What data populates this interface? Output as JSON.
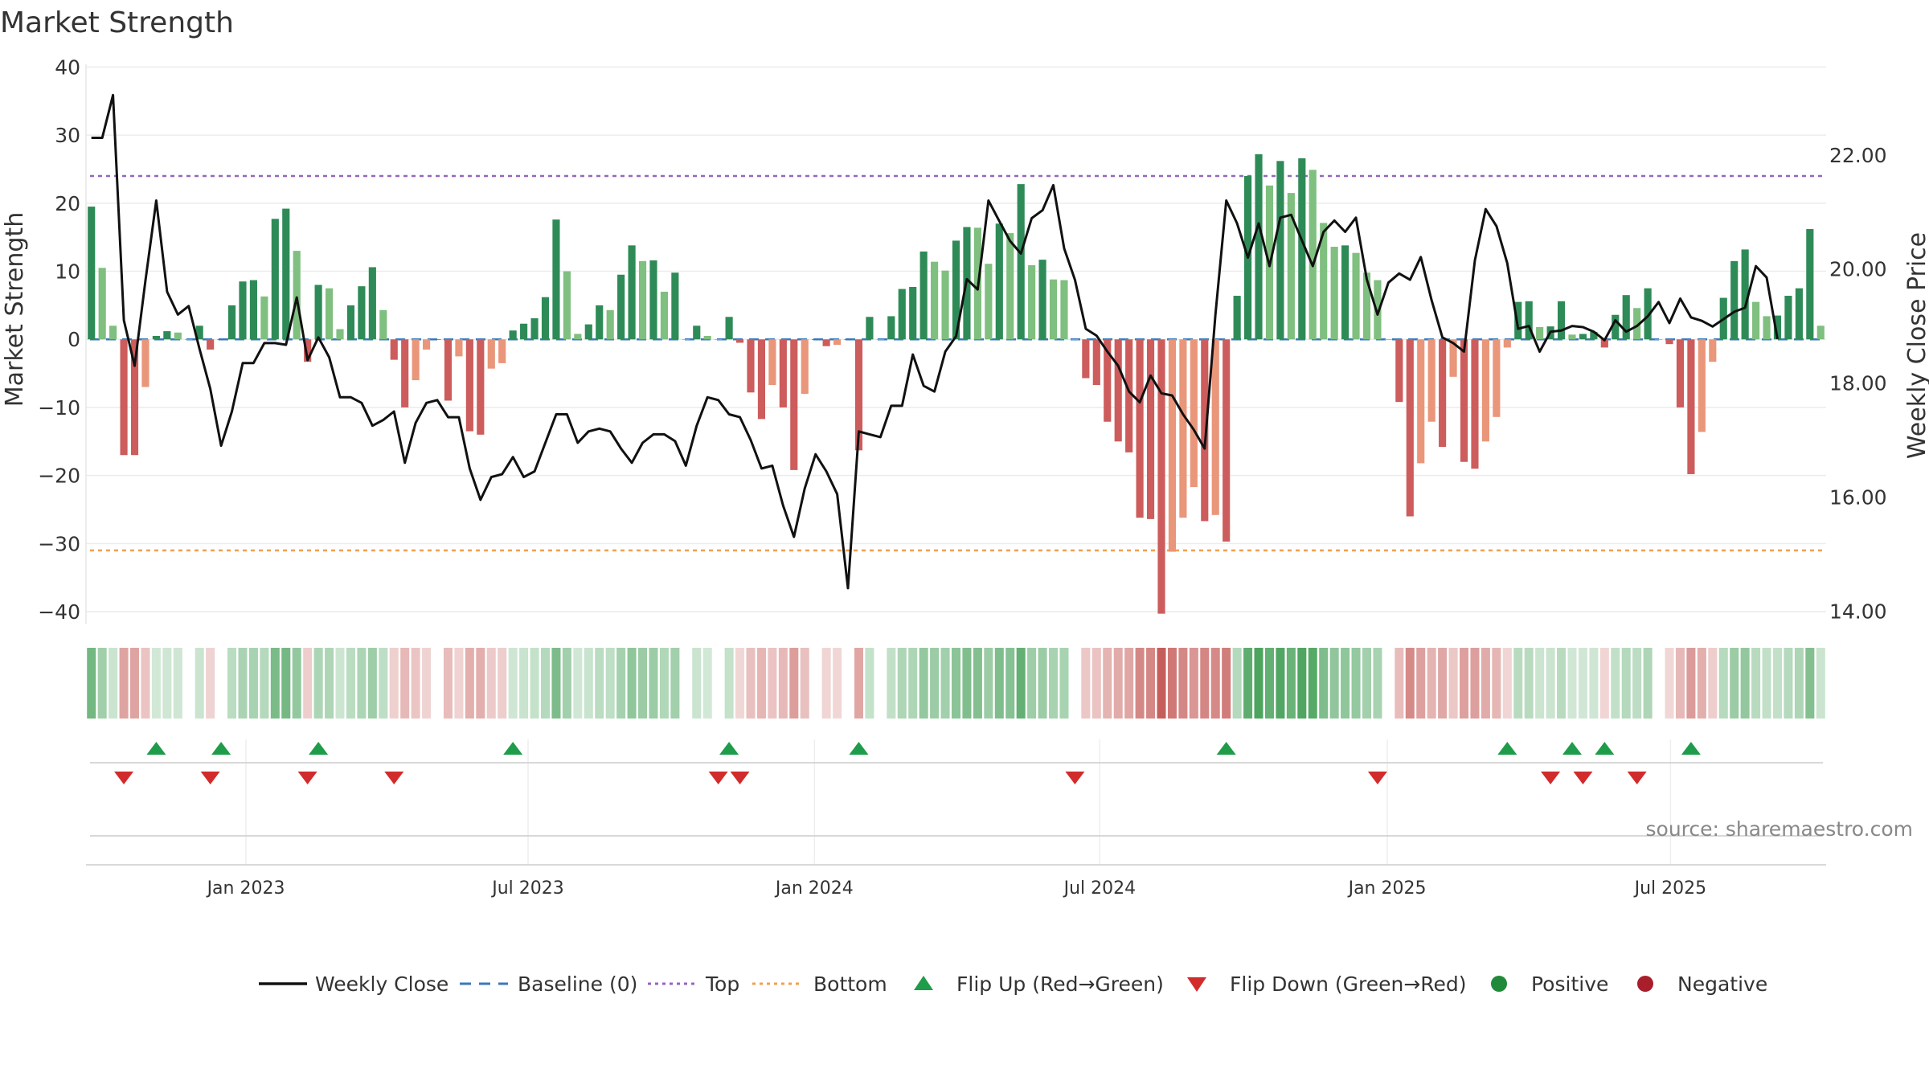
{
  "chart_data": {
    "type": "bar",
    "title": "Market Strength",
    "ylabel": "Market Strength",
    "y2label": "Weekly Close Price",
    "ylim": [
      -42,
      43
    ],
    "y2lim": [
      13.75,
      23.9
    ],
    "yticks": [
      40,
      30,
      20,
      10,
      0,
      -10,
      -20,
      -30,
      -40
    ],
    "ytick_labels": [
      "40",
      "30",
      "20",
      "10",
      "0",
      "−10",
      "−20",
      "−30",
      "−40"
    ],
    "y2ticks": [
      22,
      20,
      18,
      16,
      14
    ],
    "y2tick_labels": [
      "22.00",
      "20.00",
      "18.00",
      "16.00",
      "14.00"
    ],
    "xticks": [
      {
        "label": "Jan 2023",
        "week": 14.3
      },
      {
        "label": "Jul 2023",
        "week": 40.4
      },
      {
        "label": "Jan 2024",
        "week": 66.9
      },
      {
        "label": "Jul 2024",
        "week": 93.3
      },
      {
        "label": "Jan 2025",
        "week": 119.9
      },
      {
        "label": "Jul 2025",
        "week": 146.1
      }
    ],
    "top_line": 24,
    "bottom_line": -31,
    "strength": [
      19.5,
      10.5,
      2,
      -17,
      -17,
      -7,
      0.5,
      1.2,
      1,
      0,
      2,
      -1.5,
      0,
      5,
      8.5,
      8.7,
      6.3,
      17.7,
      19.2,
      13,
      -3.3,
      8,
      7.5,
      1.5,
      5,
      7.8,
      10.6,
      4.3,
      -3,
      -10,
      -6,
      -1.5,
      0,
      -9,
      -2.5,
      -13.5,
      -14,
      -4.3,
      -3.5,
      1.3,
      2.3,
      3.1,
      6.2,
      17.6,
      10,
      0.8,
      2.2,
      5,
      4.3,
      9.5,
      13.8,
      11.5,
      11.6,
      7,
      9.8,
      0,
      2,
      0.5,
      0,
      3.3,
      -0.5,
      -7.8,
      -11.7,
      -6.7,
      -10,
      -19.2,
      -8,
      0,
      -1,
      -0.8,
      0,
      -16.3,
      3.3,
      0,
      3.4,
      7.4,
      7.7,
      12.9,
      11.4,
      10.1,
      14.5,
      16.5,
      16.4,
      11.1,
      17,
      15.6,
      22.8,
      10.9,
      11.7,
      8.8,
      8.7,
      0,
      -5.7,
      -6.7,
      -12.1,
      -15,
      -16.6,
      -26.2,
      -26.4,
      -40.3,
      -31.2,
      -26.2,
      -21.7,
      -26.7,
      -25.8,
      -29.7,
      6.4,
      24,
      27.2,
      22.6,
      26.2,
      21.5,
      26.6,
      24.9,
      17.1,
      13.6,
      13.8,
      12.7,
      9.8,
      8.7,
      0,
      -9.2,
      -26,
      -18.2,
      -12.1,
      -15.8,
      -5.5,
      -18,
      -19,
      -15,
      -11.4,
      -1.2,
      5.5,
      5.6,
      1.8,
      1.9,
      5.6,
      0.7,
      0.8,
      1.1,
      -1.2,
      3.6,
      6.5,
      4.6,
      7.5,
      0,
      -0.7,
      -10,
      -19.8,
      -13.6,
      -3.3,
      6.1,
      11.5,
      13.2,
      5.5,
      3.4,
      3.5,
      6.4,
      7.5,
      16.2,
      2
    ],
    "close": [
      22.3,
      22.3,
      23.05,
      19.1,
      18.3,
      19.8,
      21.2,
      19.6,
      19.2,
      19.35,
      18.6,
      17.9,
      16.9,
      17.5,
      18.35,
      18.35,
      18.7,
      18.7,
      18.67,
      19.5,
      18.4,
      18.8,
      18.45,
      17.75,
      17.75,
      17.65,
      17.25,
      17.35,
      17.5,
      16.6,
      17.3,
      17.65,
      17.7,
      17.4,
      17.4,
      16.5,
      15.95,
      16.35,
      16.4,
      16.7,
      16.35,
      16.45,
      16.95,
      17.45,
      17.45,
      16.95,
      17.15,
      17.2,
      17.15,
      16.85,
      16.6,
      16.95,
      17.1,
      17.1,
      16.98,
      16.55,
      17.25,
      17.75,
      17.7,
      17.45,
      17.4,
      17.0,
      16.5,
      16.55,
      15.85,
      15.3,
      16.15,
      16.75,
      16.45,
      16.05,
      14.4,
      17.15,
      17.1,
      17.05,
      17.6,
      17.6,
      18.5,
      17.95,
      17.85,
      18.55,
      18.82,
      19.82,
      19.64,
      21.2,
      20.84,
      20.49,
      20.27,
      20.89,
      21.03,
      21.47,
      20.36,
      19.81,
      18.95,
      18.83,
      18.55,
      18.3,
      17.85,
      17.66,
      18.13,
      17.82,
      17.78,
      17.45,
      17.18,
      16.85,
      19.2,
      21.2,
      20.8,
      20.2,
      20.8,
      20.05,
      20.9,
      20.95,
      20.5,
      20.05,
      20.65,
      20.85,
      20.65,
      20.9,
      19.82,
      19.2,
      19.76,
      19.92,
      19.81,
      20.21,
      19.45,
      18.8,
      18.7,
      18.55,
      20.15,
      21.05,
      20.75,
      20.1,
      18.95,
      19.0,
      18.55,
      18.9,
      18.92,
      19.0,
      18.98,
      18.9,
      18.75,
      19.1,
      18.9,
      19.0,
      19.17,
      19.42,
      19.05,
      19.48,
      19.15,
      19.09,
      18.99,
      19.12,
      19.25,
      19.32,
      20.05,
      19.85,
      18.77
    ],
    "flip_up_weeks": [
      6,
      12,
      21,
      39,
      59,
      71,
      105,
      131,
      137,
      140,
      148
    ],
    "flip_down_weeks": [
      3,
      11,
      20,
      28,
      58,
      60,
      91,
      119,
      135,
      138,
      143
    ],
    "legend": [
      {
        "label": "Weekly Close",
        "kind": "line",
        "color": "#111111"
      },
      {
        "label": "Baseline (0)",
        "kind": "dash",
        "color": "#3a7ab8"
      },
      {
        "label": "Top",
        "kind": "dot",
        "color": "#9467bd"
      },
      {
        "label": "Bottom",
        "kind": "dot",
        "color": "#f0a050"
      },
      {
        "label": "Flip Up (Red→Green)",
        "kind": "tri-up",
        "color": "#1e9c4a"
      },
      {
        "label": "Flip Down (Green→Red)",
        "kind": "tri-down",
        "color": "#d22b2b"
      },
      {
        "label": "Positive",
        "kind": "dot-circle",
        "color": "#218a3a"
      },
      {
        "label": "Negative",
        "kind": "dot-circle",
        "color": "#a81e2b"
      }
    ],
    "legend_position": "bottom-center",
    "grid": true,
    "colors": {
      "pos_strong": "#2e8b57",
      "pos_weak": "#7fbf7f",
      "neg_strong": "#cd5c5c",
      "neg_weak": "#e9967a",
      "top": "#9467bd",
      "bottom": "#f0a050",
      "baseline": "#3a7ab8",
      "close": "#111111"
    }
  },
  "source_text": "source: sharemaestro.com"
}
